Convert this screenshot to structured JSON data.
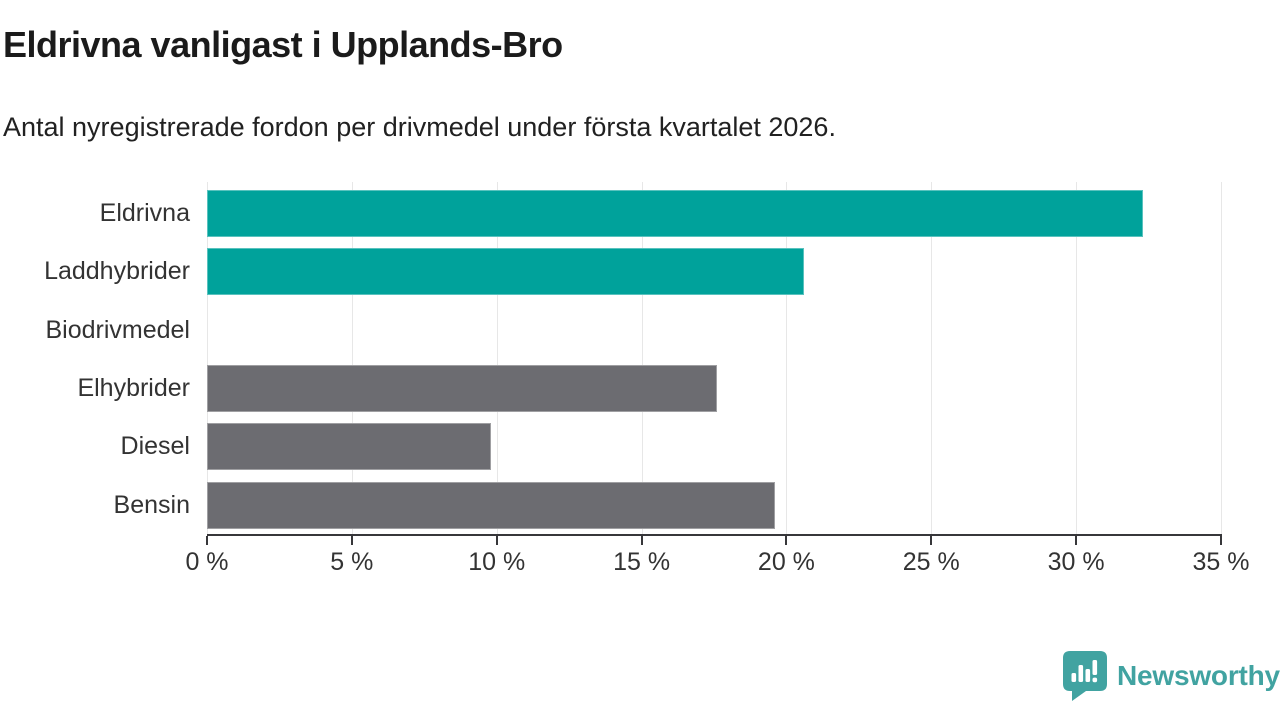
{
  "title": "Eldrivna vanligast i Upplands-Bro",
  "subtitle": "Antal nyregistrerade fordon per drivmedel under första kvartalet 2026.",
  "colors": {
    "bar_teal": "#00A29B",
    "bar_gray": "#6C6C71",
    "grid": "#E7E7E7",
    "axis": "#37373A",
    "text_dark": "#1B1B1B",
    "text_axis": "#333333",
    "brand_teal": "#41A3A1"
  },
  "chart_data": {
    "type": "bar",
    "orientation": "horizontal",
    "title": "Eldrivna vanligast i Upplands-Bro",
    "subtitle": "Antal nyregistrerade fordon per drivmedel under första kvartalet 2026.",
    "categories": [
      "Eldrivna",
      "Laddhybrider",
      "Biodrivmedel",
      "Elhybrider",
      "Diesel",
      "Bensin"
    ],
    "values": [
      32.3,
      20.6,
      0,
      17.6,
      9.8,
      19.6
    ],
    "bar_colors": [
      "#00A29B",
      "#00A29B",
      "#6C6C71",
      "#6C6C71",
      "#6C6C71",
      "#6C6C71"
    ],
    "unit": "%",
    "xlim": [
      0,
      35
    ],
    "x_ticks": [
      "0 %",
      "5 %",
      "10 %",
      "15 %",
      "20 %",
      "25 %",
      "30 %",
      "35 %"
    ],
    "x_tick_values": [
      0,
      5,
      10,
      15,
      20,
      25,
      30,
      35
    ],
    "grid": true,
    "legend": false
  },
  "footer": {
    "brand": "Newsworthy"
  }
}
